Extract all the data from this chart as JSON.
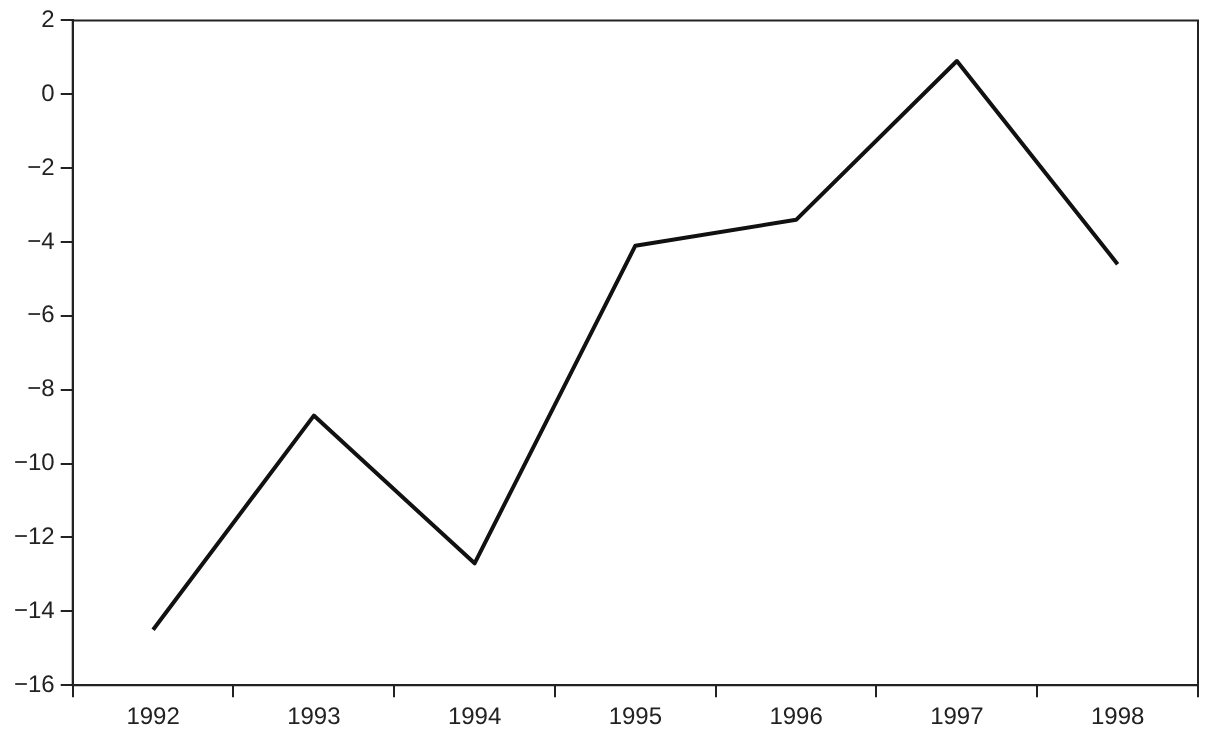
{
  "chart_data": {
    "type": "line",
    "categories": [
      "1992",
      "1993",
      "1994",
      "1995",
      "1996",
      "1997",
      "1998"
    ],
    "series": [
      {
        "color": "#111111",
        "values": [
          -14.5,
          -8.7,
          -12.7,
          -4.1,
          -3.4,
          0.9,
          -4.6
        ]
      }
    ],
    "ylim": [
      -16,
      2
    ],
    "yticks": [
      {
        "value": -16,
        "label": "−16"
      },
      {
        "value": -14,
        "label": "−14"
      },
      {
        "value": -12,
        "label": "−12"
      },
      {
        "value": -10,
        "label": "−10"
      },
      {
        "value": -8,
        "label": "−8"
      },
      {
        "value": -6,
        "label": "−6"
      },
      {
        "value": -4,
        "label": "−4"
      },
      {
        "value": -2,
        "label": "−2"
      },
      0,
      2
    ],
    "grid": false,
    "legend": false,
    "marker": "none",
    "line_style": "solid"
  }
}
